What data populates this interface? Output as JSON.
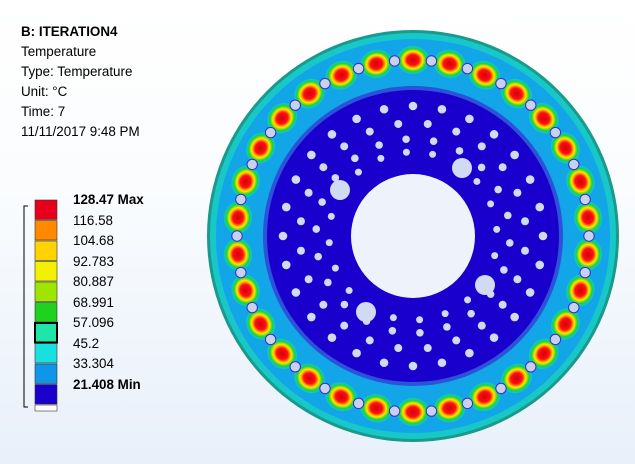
{
  "result": {
    "title": "B: ITERATION4",
    "quantity": "Temperature",
    "type_line": "Type: Temperature",
    "unit_line": "Unit: °C",
    "time_line": "Time: 7",
    "date_line": "11/11/2017 9:48 PM"
  },
  "legend": {
    "levels": [
      {
        "value": "128.47 Max",
        "color": "#e8001a",
        "bold": true
      },
      {
        "value": "116.58",
        "color": "#ff8a00"
      },
      {
        "value": "104.68",
        "color": "#ffd200"
      },
      {
        "value": "92.783",
        "color": "#f2f200"
      },
      {
        "value": "80.887",
        "color": "#9ee600"
      },
      {
        "value": "68.991",
        "color": "#1fd21f"
      },
      {
        "value": "57.096",
        "color": "#1ee6a8"
      },
      {
        "value": "45.2",
        "color": "#19e0e0"
      },
      {
        "value": "33.304",
        "color": "#0f96e8"
      },
      {
        "value": "21.408 Min",
        "color": "#1a00cc",
        "bold": true
      }
    ],
    "selected_band_index": 6
  },
  "model": {
    "name": "brake-disc",
    "colors": {
      "core": "#1a00cc",
      "ring": "#0f96e8",
      "hot_spot": "#e8001a",
      "rim": "#19e0e0",
      "hole": "#c8d2f0"
    }
  }
}
